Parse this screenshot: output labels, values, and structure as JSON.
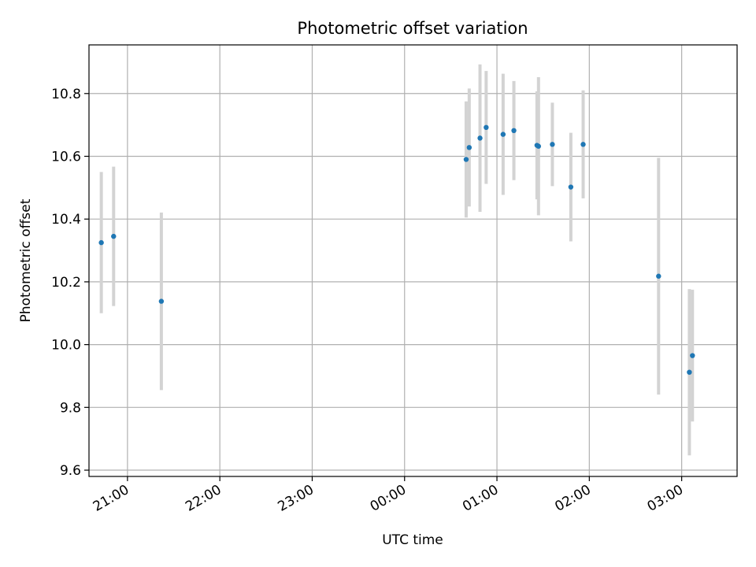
{
  "chart_data": {
    "type": "scatter",
    "title": "Photometric offset variation",
    "xlabel": "UTC time",
    "ylabel": "Photometric offset",
    "x_ticks": [
      "21:00",
      "22:00",
      "23:00",
      "00:00",
      "01:00",
      "02:00",
      "03:00"
    ],
    "y_ticks": [
      "9.6",
      "9.8",
      "10.0",
      "10.2",
      "10.4",
      "10.6",
      "10.8"
    ],
    "xlim": [
      "20:35",
      "03:36"
    ],
    "ylim": [
      9.58,
      10.955
    ],
    "grid": true,
    "colors": {
      "point": "#1f77b4",
      "errorbar": "#d3d3d3",
      "grid": "#b0b0b0"
    },
    "points": [
      {
        "t": "20:43",
        "y": 10.325,
        "err": 0.225
      },
      {
        "t": "20:51",
        "y": 10.345,
        "err": 0.222
      },
      {
        "t": "21:22",
        "y": 10.138,
        "err": 0.283
      },
      {
        "t": "00:40",
        "y": 10.59,
        "err": 0.185
      },
      {
        "t": "00:42",
        "y": 10.628,
        "err": 0.188
      },
      {
        "t": "00:49",
        "y": 10.658,
        "err": 0.235
      },
      {
        "t": "00:53",
        "y": 10.692,
        "err": 0.18
      },
      {
        "t": "01:04",
        "y": 10.67,
        "err": 0.193
      },
      {
        "t": "01:11",
        "y": 10.682,
        "err": 0.158
      },
      {
        "t": "01:26",
        "y": 10.635,
        "err": 0.172
      },
      {
        "t": "01:27",
        "y": 10.632,
        "err": 0.22
      },
      {
        "t": "01:36",
        "y": 10.638,
        "err": 0.133
      },
      {
        "t": "01:48",
        "y": 10.502,
        "err": 0.173
      },
      {
        "t": "01:56",
        "y": 10.638,
        "err": 0.172
      },
      {
        "t": "02:45",
        "y": 10.218,
        "err": 0.377
      },
      {
        "t": "03:05",
        "y": 9.912,
        "err": 0.265
      },
      {
        "t": "03:07",
        "y": 9.965,
        "err": 0.21
      }
    ]
  }
}
